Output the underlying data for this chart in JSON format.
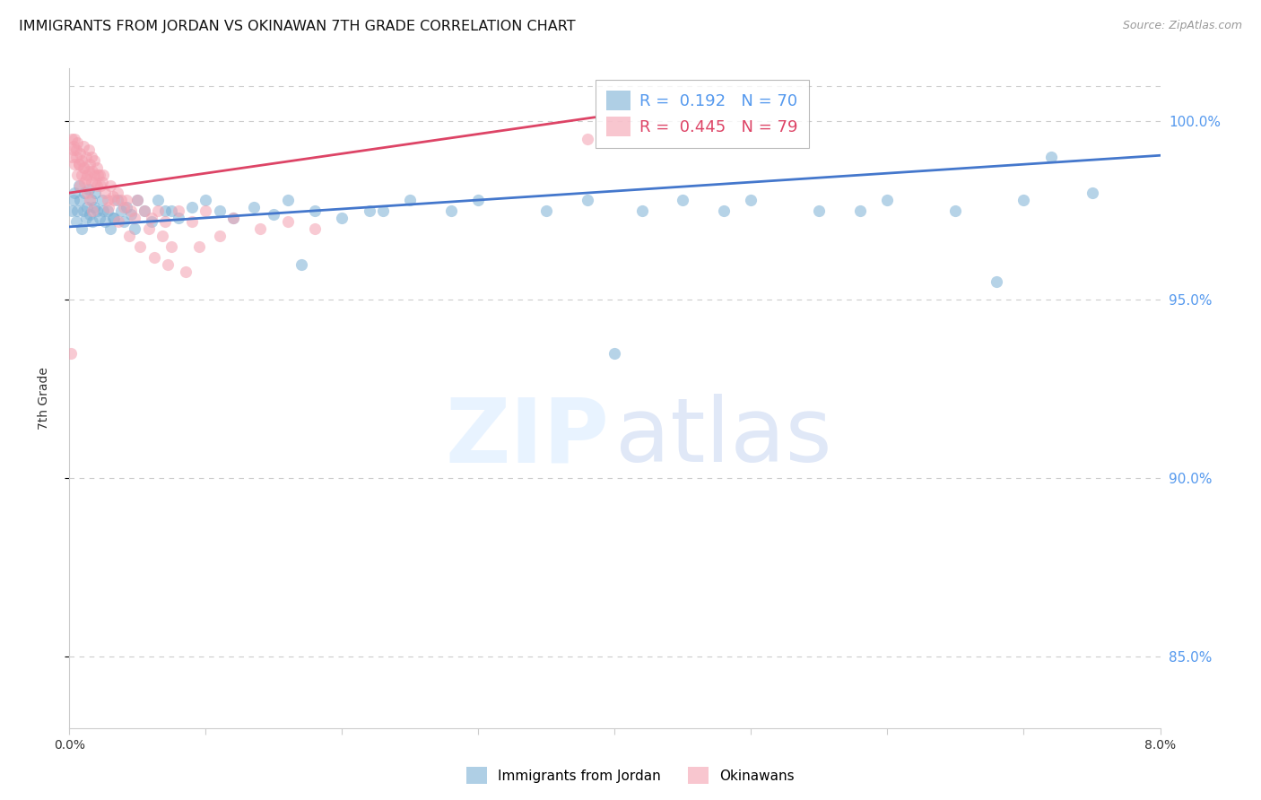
{
  "title": "IMMIGRANTS FROM JORDAN VS OKINAWAN 7TH GRADE CORRELATION CHART",
  "source": "Source: ZipAtlas.com",
  "ylabel": "7th Grade",
  "xmin": 0.0,
  "xmax": 8.0,
  "ymin": 83.0,
  "ymax": 101.5,
  "yticks": [
    85.0,
    90.0,
    95.0,
    100.0
  ],
  "xticks": [
    0.0,
    1.0,
    2.0,
    3.0,
    4.0,
    5.0,
    6.0,
    7.0,
    8.0
  ],
  "blue_color": "#7BAFD4",
  "pink_color": "#F4A0B0",
  "trend_blue": "#4477CC",
  "trend_pink": "#DD4466",
  "legend_R_blue": "0.192",
  "legend_N_blue": "70",
  "legend_R_pink": "0.445",
  "legend_N_pink": "79",
  "legend_label_blue": "Immigrants from Jordan",
  "legend_label_pink": "Okinawans",
  "right_axis_color": "#5599EE",
  "grid_color": "#cccccc",
  "background_color": "#ffffff",
  "blue_x": [
    0.02,
    0.03,
    0.04,
    0.05,
    0.06,
    0.07,
    0.08,
    0.09,
    0.1,
    0.11,
    0.12,
    0.13,
    0.14,
    0.15,
    0.16,
    0.17,
    0.18,
    0.19,
    0.2,
    0.22,
    0.24,
    0.26,
    0.28,
    0.3,
    0.32,
    0.35,
    0.38,
    0.4,
    0.42,
    0.45,
    0.5,
    0.55,
    0.6,
    0.65,
    0.7,
    0.8,
    0.9,
    1.0,
    1.1,
    1.2,
    1.35,
    1.5,
    1.6,
    1.8,
    2.0,
    2.2,
    2.5,
    2.8,
    3.0,
    3.5,
    4.0,
    4.2,
    4.5,
    4.8,
    5.0,
    5.5,
    6.0,
    6.5,
    7.0,
    7.5,
    0.25,
    0.33,
    0.48,
    0.75,
    1.7,
    2.3,
    3.8,
    5.8,
    6.8,
    7.2
  ],
  "blue_y": [
    97.5,
    97.8,
    98.0,
    97.2,
    97.5,
    98.2,
    97.8,
    97.0,
    97.5,
    98.0,
    97.3,
    97.6,
    98.1,
    97.4,
    97.8,
    97.2,
    97.6,
    98.0,
    97.5,
    97.3,
    97.8,
    97.2,
    97.5,
    97.0,
    97.3,
    97.8,
    97.5,
    97.2,
    97.6,
    97.4,
    97.8,
    97.5,
    97.2,
    97.8,
    97.5,
    97.3,
    97.6,
    97.8,
    97.5,
    97.3,
    97.6,
    97.4,
    97.8,
    97.5,
    97.3,
    97.5,
    97.8,
    97.5,
    97.8,
    97.5,
    93.5,
    97.5,
    97.8,
    97.5,
    97.8,
    97.5,
    97.8,
    97.5,
    97.8,
    98.0,
    97.5,
    97.3,
    97.0,
    97.5,
    96.0,
    97.5,
    97.8,
    97.5,
    95.5,
    99.0
  ],
  "pink_x": [
    0.02,
    0.03,
    0.04,
    0.05,
    0.06,
    0.07,
    0.08,
    0.09,
    0.1,
    0.11,
    0.12,
    0.13,
    0.14,
    0.15,
    0.16,
    0.17,
    0.18,
    0.19,
    0.2,
    0.21,
    0.04,
    0.06,
    0.08,
    0.1,
    0.12,
    0.14,
    0.16,
    0.18,
    0.2,
    0.22,
    0.24,
    0.26,
    0.28,
    0.3,
    0.32,
    0.35,
    0.38,
    0.4,
    0.42,
    0.45,
    0.5,
    0.55,
    0.6,
    0.65,
    0.7,
    0.8,
    0.9,
    1.0,
    1.2,
    1.4,
    0.02,
    0.03,
    0.05,
    0.07,
    0.09,
    0.11,
    0.13,
    0.15,
    0.17,
    0.25,
    0.33,
    0.48,
    0.58,
    0.68,
    0.75,
    1.6,
    1.8,
    3.8,
    0.23,
    0.29,
    0.36,
    0.44,
    0.52,
    0.62,
    0.72,
    0.85,
    0.95,
    1.1,
    0.01
  ],
  "pink_y": [
    99.0,
    99.3,
    99.5,
    99.2,
    99.4,
    98.8,
    99.1,
    98.9,
    99.3,
    98.7,
    99.0,
    98.5,
    99.2,
    98.8,
    99.0,
    98.6,
    98.9,
    98.3,
    98.7,
    98.5,
    98.8,
    98.5,
    98.2,
    98.7,
    98.4,
    98.6,
    98.3,
    98.5,
    98.2,
    98.5,
    98.3,
    98.0,
    97.8,
    98.2,
    97.9,
    98.0,
    97.8,
    97.6,
    97.8,
    97.5,
    97.8,
    97.5,
    97.3,
    97.5,
    97.2,
    97.5,
    97.2,
    97.5,
    97.3,
    97.0,
    99.5,
    99.2,
    99.0,
    98.8,
    98.5,
    98.3,
    98.0,
    97.8,
    97.5,
    98.5,
    97.8,
    97.3,
    97.0,
    96.8,
    96.5,
    97.2,
    97.0,
    99.5,
    98.2,
    97.6,
    97.2,
    96.8,
    96.5,
    96.2,
    96.0,
    95.8,
    96.5,
    96.8,
    93.5
  ],
  "title_fontsize": 11.5,
  "source_fontsize": 9
}
